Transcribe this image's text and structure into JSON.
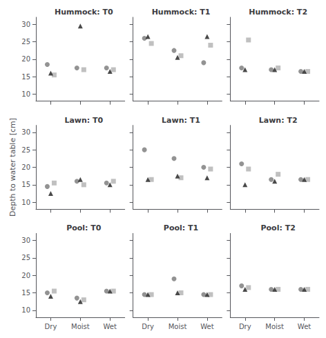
{
  "chart_data": [
    {
      "type": "scatter",
      "title": "Hummock: T0",
      "categories": [
        "Dry",
        "Moist",
        "Wet"
      ],
      "series": [
        {
          "marker": "circle",
          "color": "#787878",
          "values": [
            18.5,
            17.5,
            17.5
          ]
        },
        {
          "marker": "square",
          "color": "#b0b0b0",
          "values": [
            15.5,
            17.0,
            17.0
          ]
        },
        {
          "marker": "triangle",
          "color": "#1c1c1c",
          "values": [
            16.0,
            29.5,
            16.5
          ]
        }
      ],
      "ylim": [
        8,
        32
      ],
      "yticks": [
        10,
        15,
        20,
        25,
        30
      ],
      "grid": false,
      "tick_labels": "y"
    },
    {
      "type": "scatter",
      "title": "Hummock: T1",
      "categories": [
        "Dry",
        "Moist",
        "Wet"
      ],
      "series": [
        {
          "marker": "circle",
          "color": "#787878",
          "values": [
            26.0,
            22.5,
            19.0
          ]
        },
        {
          "marker": "square",
          "color": "#b0b0b0",
          "values": [
            24.5,
            21.0,
            24.0
          ]
        },
        {
          "marker": "triangle",
          "color": "#1c1c1c",
          "values": [
            26.5,
            20.5,
            26.5
          ]
        }
      ],
      "ylim": [
        8,
        32
      ],
      "yticks": [
        10,
        15,
        20,
        25,
        30
      ],
      "grid": false,
      "tick_labels": false
    },
    {
      "type": "scatter",
      "title": "Hummock: T2",
      "categories": [
        "Dry",
        "Moist",
        "Wet"
      ],
      "series": [
        {
          "marker": "circle",
          "color": "#787878",
          "values": [
            17.5,
            17.0,
            16.5
          ]
        },
        {
          "marker": "square",
          "color": "#b0b0b0",
          "values": [
            25.5,
            17.5,
            16.5
          ]
        },
        {
          "marker": "triangle",
          "color": "#1c1c1c",
          "values": [
            17.0,
            17.0,
            16.5
          ]
        }
      ],
      "ylim": [
        8,
        32
      ],
      "yticks": [
        10,
        15,
        20,
        25,
        30
      ],
      "grid": false,
      "tick_labels": false
    },
    {
      "type": "scatter",
      "title": "Lawn: T0",
      "ylabel": "Depth to water table [cm]",
      "categories": [
        "Dry",
        "Moist",
        "Wet"
      ],
      "series": [
        {
          "marker": "circle",
          "color": "#787878",
          "values": [
            14.5,
            16.0,
            15.5
          ]
        },
        {
          "marker": "square",
          "color": "#b0b0b0",
          "values": [
            15.5,
            15.0,
            16.0
          ]
        },
        {
          "marker": "triangle",
          "color": "#1c1c1c",
          "values": [
            12.5,
            16.5,
            15.0
          ]
        }
      ],
      "ylim": [
        8,
        32
      ],
      "yticks": [
        10,
        15,
        20,
        25,
        30
      ],
      "grid": false,
      "tick_labels": "y"
    },
    {
      "type": "scatter",
      "title": "Lawn: T1",
      "categories": [
        "Dry",
        "Moist",
        "Wet"
      ],
      "series": [
        {
          "marker": "circle",
          "color": "#787878",
          "values": [
            25.0,
            22.5,
            20.0
          ]
        },
        {
          "marker": "square",
          "color": "#b0b0b0",
          "values": [
            16.5,
            17.0,
            19.5
          ]
        },
        {
          "marker": "triangle",
          "color": "#1c1c1c",
          "values": [
            16.5,
            17.5,
            17.0
          ]
        }
      ],
      "ylim": [
        8,
        32
      ],
      "yticks": [
        10,
        15,
        20,
        25,
        30
      ],
      "grid": false,
      "tick_labels": false
    },
    {
      "type": "scatter",
      "title": "Lawn: T2",
      "categories": [
        "Dry",
        "Moist",
        "Wet"
      ],
      "series": [
        {
          "marker": "circle",
          "color": "#787878",
          "values": [
            21.0,
            16.5,
            16.5
          ]
        },
        {
          "marker": "square",
          "color": "#b0b0b0",
          "values": [
            19.5,
            18.0,
            16.5
          ]
        },
        {
          "marker": "triangle",
          "color": "#1c1c1c",
          "values": [
            15.0,
            16.0,
            16.5
          ]
        }
      ],
      "ylim": [
        8,
        32
      ],
      "yticks": [
        10,
        15,
        20,
        25,
        30
      ],
      "grid": false,
      "tick_labels": false
    },
    {
      "type": "scatter",
      "title": "Pool: T0",
      "categories": [
        "Dry",
        "Moist",
        "Wet"
      ],
      "series": [
        {
          "marker": "circle",
          "color": "#787878",
          "values": [
            15.0,
            13.5,
            15.5
          ]
        },
        {
          "marker": "square",
          "color": "#b0b0b0",
          "values": [
            15.5,
            13.0,
            15.5
          ]
        },
        {
          "marker": "triangle",
          "color": "#1c1c1c",
          "values": [
            14.0,
            12.5,
            15.5
          ]
        }
      ],
      "ylim": [
        8,
        32
      ],
      "yticks": [
        10,
        15,
        20,
        25,
        30
      ],
      "grid": false
    },
    {
      "type": "scatter",
      "title": "Pool: T1",
      "categories": [
        "Dry",
        "Moist",
        "Wet"
      ],
      "series": [
        {
          "marker": "circle",
          "color": "#787878",
          "values": [
            14.5,
            19.0,
            14.5
          ]
        },
        {
          "marker": "square",
          "color": "#b0b0b0",
          "values": [
            14.5,
            15.0,
            14.5
          ]
        },
        {
          "marker": "triangle",
          "color": "#1c1c1c",
          "values": [
            14.5,
            15.0,
            14.5
          ]
        }
      ],
      "ylim": [
        8,
        32
      ],
      "yticks": [
        10,
        15,
        20,
        25,
        30
      ],
      "grid": false,
      "tick_labels": "x"
    },
    {
      "type": "scatter",
      "title": "Pool: T2",
      "categories": [
        "Dry",
        "Moist",
        "Wet"
      ],
      "series": [
        {
          "marker": "circle",
          "color": "#787878",
          "values": [
            17.0,
            16.0,
            16.0
          ]
        },
        {
          "marker": "square",
          "color": "#b0b0b0",
          "values": [
            16.5,
            16.0,
            16.0
          ]
        },
        {
          "marker": "triangle",
          "color": "#1c1c1c",
          "values": [
            16.0,
            16.0,
            16.0
          ]
        }
      ],
      "ylim": [
        8,
        32
      ],
      "yticks": [
        10,
        15,
        20,
        25,
        30
      ],
      "grid": false,
      "tick_labels": "x"
    }
  ]
}
